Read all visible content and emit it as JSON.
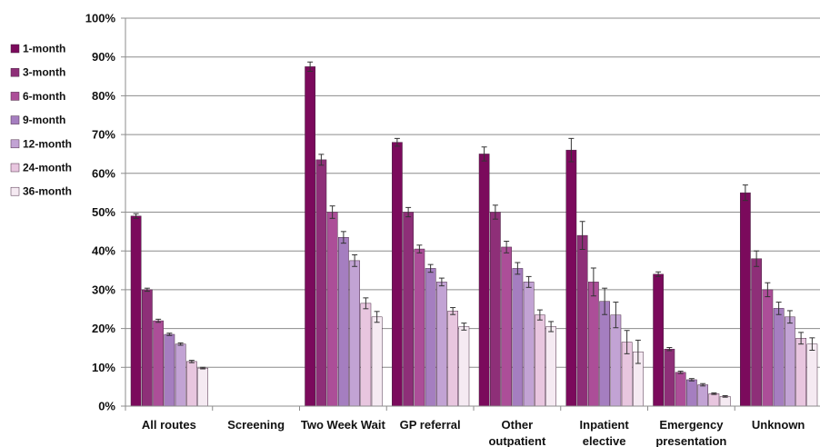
{
  "chart_data": {
    "type": "bar",
    "categories": [
      "All routes",
      "Screening",
      "Two Week Wait",
      "GP referral",
      "Other outpatient",
      "Inpatient elective",
      "Emergency presentation",
      "Unknown"
    ],
    "category_label_lines": [
      [
        "All routes"
      ],
      [
        "Screening"
      ],
      [
        "Two Week Wait"
      ],
      [
        "GP referral"
      ],
      [
        "Other",
        "outpatient"
      ],
      [
        "Inpatient",
        "elective"
      ],
      [
        "Emergency",
        "presentation"
      ],
      [
        "Unknown"
      ]
    ],
    "series": [
      {
        "name": "1-month",
        "color": "#7b0a5c",
        "values": [
          49,
          null,
          87.5,
          68,
          65,
          66,
          34,
          55
        ],
        "errors": [
          0.6,
          null,
          1.2,
          1.0,
          1.8,
          3.0,
          0.6,
          2.0
        ]
      },
      {
        "name": "3-month",
        "color": "#8e2f78",
        "values": [
          30,
          null,
          63.5,
          50,
          50,
          44,
          14.7,
          38
        ],
        "errors": [
          0.4,
          null,
          1.4,
          1.2,
          1.8,
          3.6,
          0.4,
          2.0
        ]
      },
      {
        "name": "6-month",
        "color": "#ac4e98",
        "values": [
          22,
          null,
          50,
          40.5,
          41,
          32,
          8.7,
          30
        ],
        "errors": [
          0.4,
          null,
          1.6,
          1.0,
          1.5,
          3.6,
          0.3,
          1.8
        ]
      },
      {
        "name": "9-month",
        "color": "#a57ec0",
        "values": [
          18.5,
          null,
          43.5,
          35.5,
          35.5,
          27,
          6.8,
          25.2
        ],
        "errors": [
          0.3,
          null,
          1.5,
          1.0,
          1.5,
          3.4,
          0.3,
          1.6
        ]
      },
      {
        "name": "12-month",
        "color": "#c2a3d4",
        "values": [
          16,
          null,
          37.5,
          32,
          32,
          23.5,
          5.5,
          23
        ],
        "errors": [
          0.3,
          null,
          1.5,
          1.0,
          1.4,
          3.3,
          0.3,
          1.6
        ]
      },
      {
        "name": "24-month",
        "color": "#e8c6df",
        "values": [
          11.5,
          null,
          26.5,
          24.5,
          23.5,
          16.5,
          3.2,
          17.5
        ],
        "errors": [
          0.3,
          null,
          1.4,
          0.9,
          1.3,
          3.0,
          0.2,
          1.5
        ]
      },
      {
        "name": "36-month",
        "color": "#f5eaf2",
        "values": [
          9.8,
          null,
          23,
          20.5,
          20.5,
          14,
          2.5,
          16
        ],
        "errors": [
          0.2,
          null,
          1.4,
          0.9,
          1.3,
          3.0,
          0.2,
          1.6
        ]
      }
    ],
    "y_ticks": [
      "0%",
      "10%",
      "20%",
      "30%",
      "40%",
      "50%",
      "60%",
      "70%",
      "80%",
      "90%",
      "100%"
    ],
    "ylim": [
      0,
      100
    ],
    "grid": true,
    "legend_position": "top-left",
    "title": "",
    "xlabel": "",
    "ylabel": ""
  }
}
